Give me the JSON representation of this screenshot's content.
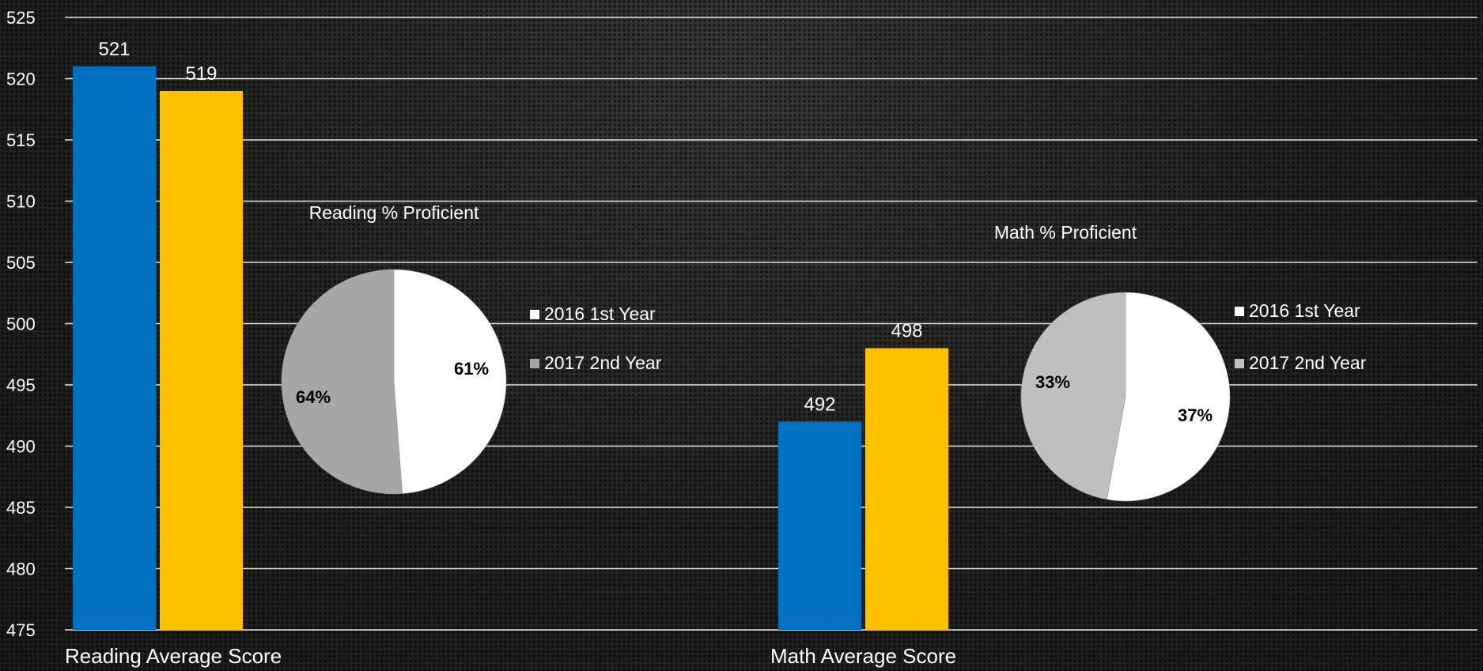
{
  "chart_data": [
    {
      "type": "bar",
      "categories": [
        "Reading Average Score",
        "Math Average Score"
      ],
      "series": [
        {
          "values": [
            521,
            492
          ],
          "color": "#0070C0"
        },
        {
          "values": [
            519,
            498
          ],
          "color": "#FFC000"
        }
      ],
      "ylim": [
        475,
        525
      ],
      "yticks": [
        "475",
        "480",
        "485",
        "490",
        "495",
        "500",
        "505",
        "510",
        "515",
        "520",
        "525"
      ],
      "grid": true
    },
    {
      "type": "pie",
      "title": "Reading % Proficient",
      "slices": [
        {
          "label": "2016 1st Year",
          "value": 61,
          "display": "61%",
          "color": "#FFFFFF"
        },
        {
          "label": "2017 2nd Year",
          "value": 64,
          "display": "64%",
          "color": "#A6A6A6"
        }
      ],
      "legend": "right"
    },
    {
      "type": "pie",
      "title": "Math % Proficient",
      "slices": [
        {
          "label": "2016 1st Year",
          "value": 37,
          "display": "37%",
          "color": "#FFFFFF"
        },
        {
          "label": "2017 2nd Year",
          "value": 33,
          "display": "33%",
          "color": "#BFBFBF"
        }
      ],
      "legend": "right"
    }
  ]
}
